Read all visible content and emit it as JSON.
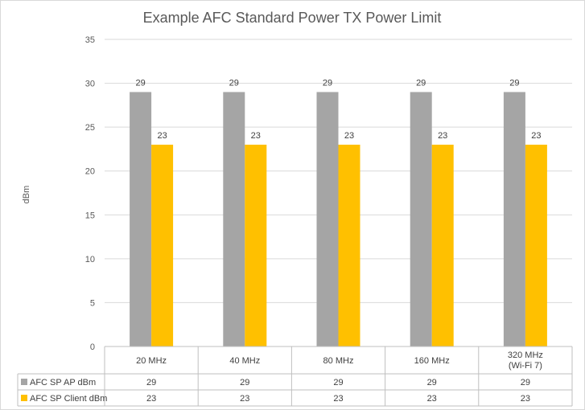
{
  "chart_data": {
    "type": "bar",
    "title": "Example AFC Standard Power TX Power Limit",
    "xlabel": "",
    "ylabel": "dBm",
    "ylim": [
      0,
      35
    ],
    "yticks": [
      0,
      5,
      10,
      15,
      20,
      25,
      30,
      35
    ],
    "categories": [
      [
        "20 MHz"
      ],
      [
        "40 MHz"
      ],
      [
        "80 MHz"
      ],
      [
        "160 MHz"
      ],
      [
        "320 MHz",
        "(Wi-Fi 7)"
      ]
    ],
    "series": [
      {
        "name": "AFC SP AP dBm",
        "values": [
          29,
          29,
          29,
          29,
          29
        ],
        "color": "#a5a5a5"
      },
      {
        "name": "AFC SP Client dBm",
        "values": [
          23,
          23,
          23,
          23,
          23
        ],
        "color": "#ffc000"
      }
    ],
    "grid": true,
    "data_labels": true,
    "legend": "data-table-left"
  }
}
